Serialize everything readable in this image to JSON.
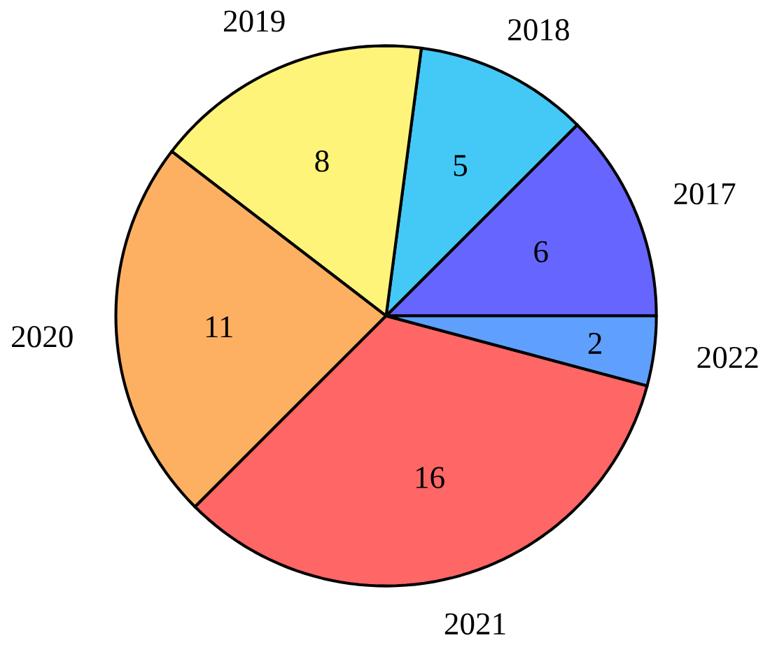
{
  "chart_data": {
    "type": "pie",
    "categories": [
      "2017",
      "2018",
      "2019",
      "2020",
      "2021",
      "2022"
    ],
    "values": [
      6,
      5,
      8,
      11,
      16,
      2
    ],
    "colors": [
      "#6666ff",
      "#44c8f5",
      "#fff47a",
      "#fdb062",
      "#ff6666",
      "#5fa0ff"
    ],
    "data_labels": true
  }
}
